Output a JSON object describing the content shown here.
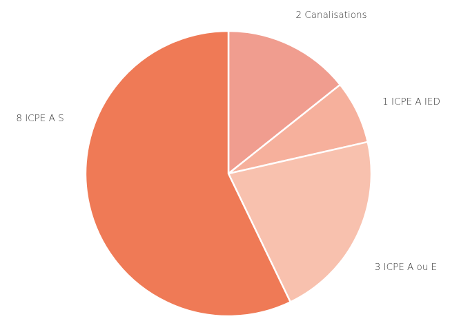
{
  "chart_data": {
    "type": "pie",
    "categories": [
      "2 Canalisations",
      "1 ICPE A IED",
      "3 ICPE A ou E",
      "8 ICPE A S"
    ],
    "values": [
      2,
      1,
      3,
      8
    ],
    "colors": [
      "#f09d8f",
      "#f6b09c",
      "#f8c1ae",
      "#ef7a56"
    ]
  }
}
